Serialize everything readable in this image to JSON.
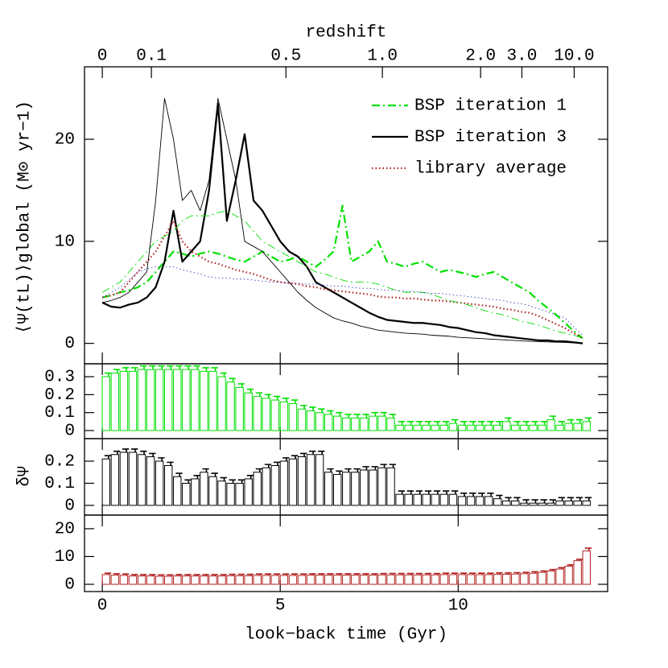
{
  "chart_data": [
    {
      "type": "line",
      "ylabel": "⟨Ψ(tL)⟩global  (M⊙ yr−1)",
      "x2label": "redshift",
      "x2ticks": [
        0,
        {
          "value": 1.38,
          "label": "0.1"
        },
        {
          "value": 5.16,
          "label": "0.5"
        },
        {
          "value": 7.87,
          "label": "1.0"
        },
        {
          "value": 10.63,
          "label": "2.0"
        },
        {
          "value": 11.79,
          "label": "3.0"
        },
        {
          "value": 13.26,
          "label": "10.0"
        }
      ],
      "xlim": [
        -0.5,
        14.2
      ],
      "ylim": [
        -2,
        27.1
      ],
      "yticks": [
        0,
        10,
        20
      ],
      "legend": "upper right",
      "x": [
        0,
        0.25,
        0.5,
        0.75,
        1,
        1.25,
        1.5,
        1.75,
        2,
        2.25,
        2.5,
        2.75,
        3,
        3.25,
        3.5,
        3.75,
        4,
        4.25,
        4.5,
        4.75,
        5,
        5.25,
        5.5,
        5.75,
        6,
        6.25,
        6.5,
        6.75,
        7,
        7.25,
        7.5,
        7.75,
        8,
        8.25,
        8.5,
        8.75,
        9,
        9.25,
        9.5,
        9.75,
        10,
        10.25,
        10.5,
        10.75,
        11,
        11.25,
        11.5,
        11.75,
        12,
        12.25,
        12.5,
        12.75,
        13,
        13.25,
        13.5
      ],
      "series": [
        {
          "name": "BSP iteration 1",
          "color": "#00e000",
          "style": "dashdot",
          "weight": "bold",
          "values": [
            4.5,
            4.7,
            5,
            5.2,
            5.5,
            6,
            7,
            8,
            9,
            8.8,
            8.5,
            8.8,
            9,
            8.8,
            8.5,
            8.2,
            8,
            8.5,
            9,
            8.5,
            8,
            8.2,
            8.5,
            8,
            7.5,
            8.2,
            9,
            13.5,
            8,
            8.5,
            9,
            10,
            8,
            7.8,
            7.5,
            7.8,
            8,
            7.5,
            7,
            7.2,
            7,
            6.8,
            6.5,
            6.8,
            7,
            6.5,
            6,
            5.5,
            5,
            4.2,
            3.5,
            2.8,
            2,
            1.2,
            0.5
          ]
        },
        {
          "name": "BSP iteration 3",
          "color": "#000000",
          "style": "solid",
          "weight": "bold",
          "values": [
            4,
            3.6,
            3.5,
            3.8,
            4,
            4.5,
            5.5,
            8,
            13,
            8,
            9,
            10,
            15,
            23.5,
            12,
            16,
            20.5,
            14,
            13,
            11.5,
            10,
            9,
            8.5,
            7.5,
            6,
            5.5,
            5,
            4.5,
            4,
            3.5,
            3,
            2.6,
            2.3,
            2.2,
            2.1,
            2,
            2,
            1.9,
            1.8,
            1.6,
            1.5,
            1.3,
            1.1,
            1,
            0.8,
            0.7,
            0.6,
            0.5,
            0.4,
            0.3,
            0.3,
            0.2,
            0.2,
            0.1,
            0
          ]
        },
        {
          "name": "library average",
          "color": "#b22222",
          "style": "dotted",
          "weight": "bold",
          "values": [
            4.5,
            4.7,
            5,
            6,
            7,
            8,
            9,
            10.5,
            12,
            10,
            9,
            8.5,
            8,
            7.8,
            7.5,
            7.2,
            7,
            6.8,
            6.5,
            6.2,
            6,
            5.9,
            5.8,
            5.6,
            5.5,
            5.3,
            5.2,
            5.1,
            5,
            4.9,
            4.8,
            4.6,
            4.5,
            4.5,
            4.4,
            4.4,
            4.3,
            4.2,
            4.2,
            4.1,
            4,
            3.9,
            3.8,
            3.7,
            3.6,
            3.4,
            3.3,
            3.1,
            3,
            2.7,
            2.3,
            1.9,
            1.5,
            1,
            0.5
          ]
        },
        {
          "color": "#00e000",
          "style": "dashdot",
          "weight": "thin",
          "values": [
            5,
            5.5,
            6,
            7,
            8,
            9,
            10,
            10.5,
            11,
            12,
            12.5,
            12.5,
            12.5,
            12.8,
            13,
            12.5,
            12,
            11,
            10,
            9.5,
            9,
            8.5,
            8,
            7.5,
            7,
            6.8,
            6.5,
            6.2,
            6,
            6,
            6,
            5.8,
            5.5,
            5.2,
            5,
            5,
            5,
            4.8,
            4.5,
            4.2,
            4,
            3.8,
            3.5,
            3.2,
            3,
            2.8,
            2.5,
            2.2,
            2,
            1.8,
            1.5,
            1.2,
            1,
            0.8,
            0.5
          ]
        },
        {
          "color": "#000000",
          "style": "solid",
          "weight": "thin",
          "values": [
            4,
            4.2,
            4.5,
            5,
            6,
            7,
            14,
            24,
            20,
            14,
            15,
            13,
            16,
            24,
            20,
            16,
            10,
            9.5,
            9,
            8,
            7,
            6,
            5,
            4.2,
            3.5,
            3,
            2.5,
            2.2,
            2,
            1.7,
            1.5,
            1.3,
            1.2,
            1.1,
            1,
            0.95,
            0.9,
            0.8,
            0.75,
            0.7,
            0.6,
            0.55,
            0.5,
            0.45,
            0.4,
            0.35,
            0.3,
            0.25,
            0.2,
            0.18,
            0.15,
            0.12,
            0.1,
            0.05,
            0
          ]
        },
        {
          "color": "#3c3cc8",
          "style": "dotted",
          "weight": "thin",
          "values": [
            4.5,
            5,
            5.5,
            6.2,
            7,
            7.3,
            7.5,
            7.5,
            7.5,
            7.2,
            7,
            6.8,
            6.5,
            6.4,
            6.4,
            6.3,
            6.3,
            6.2,
            6.1,
            6,
            6,
            5.9,
            5.9,
            5.8,
            5.8,
            5.7,
            5.6,
            5.6,
            5.5,
            5.4,
            5.4,
            5.3,
            5.2,
            5.2,
            5.1,
            5.1,
            5,
            4.9,
            4.9,
            4.8,
            4.7,
            4.6,
            4.5,
            4.4,
            4.3,
            4.2,
            4,
            3.9,
            3.7,
            3.4,
            3.1,
            2.8,
            2.5,
            1.6,
            0.8
          ]
        }
      ]
    },
    {
      "type": "errorbar",
      "color": "#00e000",
      "xlim": [
        -0.5,
        14.2
      ],
      "ylim": [
        -0.045,
        0.372
      ],
      "yticks": [
        0,
        0.1,
        0.2,
        0.3
      ],
      "x": [
        0,
        0.25,
        0.5,
        0.75,
        1,
        1.25,
        1.5,
        1.75,
        2,
        2.25,
        2.5,
        2.75,
        3,
        3.25,
        3.5,
        3.75,
        4,
        4.25,
        4.5,
        4.75,
        5,
        5.25,
        5.5,
        5.75,
        6,
        6.25,
        6.5,
        6.75,
        7,
        7.25,
        7.5,
        7.75,
        8,
        8.25,
        8.5,
        8.75,
        9,
        9.25,
        9.5,
        9.75,
        10,
        10.25,
        10.5,
        10.75,
        11,
        11.25,
        11.5,
        11.75,
        12,
        12.25,
        12.5,
        12.75,
        13,
        13.25,
        13.5
      ],
      "values": [
        0.3,
        0.32,
        0.33,
        0.33,
        0.34,
        0.34,
        0.34,
        0.34,
        0.34,
        0.34,
        0.34,
        0.33,
        0.33,
        0.3,
        0.27,
        0.24,
        0.21,
        0.19,
        0.18,
        0.17,
        0.16,
        0.15,
        0.12,
        0.11,
        0.1,
        0.09,
        0.08,
        0.07,
        0.07,
        0.07,
        0.08,
        0.08,
        0.07,
        0.03,
        0.03,
        0.03,
        0.03,
        0.03,
        0.03,
        0.04,
        0.03,
        0.03,
        0.03,
        0.03,
        0.03,
        0.05,
        0.03,
        0.03,
        0.03,
        0.03,
        0.06,
        0.03,
        0.04,
        0.04,
        0.05
      ],
      "errors": [
        0.02,
        0.02,
        0.02,
        0.02,
        0.02,
        0.02,
        0.02,
        0.02,
        0.02,
        0.02,
        0.02,
        0.02,
        0.02,
        0.02,
        0.02,
        0.02,
        0.02,
        0.02,
        0.02,
        0.02,
        0.02,
        0.02,
        0.02,
        0.02,
        0.02,
        0.02,
        0.02,
        0.02,
        0.02,
        0.02,
        0.02,
        0.02,
        0.02,
        0.02,
        0.02,
        0.02,
        0.02,
        0.02,
        0.02,
        0.02,
        0.02,
        0.02,
        0.02,
        0.02,
        0.02,
        0.02,
        0.02,
        0.02,
        0.02,
        0.02,
        0.02,
        0.02,
        0.02,
        0.02,
        0.02
      ]
    },
    {
      "type": "errorbar",
      "color": "#000000",
      "ylabel": "δΨ",
      "xlim": [
        -0.5,
        14.2
      ],
      "ylim": [
        -0.044,
        0.302
      ],
      "yticks": [
        0,
        0.1,
        0.2
      ],
      "x": [
        0,
        0.25,
        0.5,
        0.75,
        1,
        1.25,
        1.5,
        1.75,
        2,
        2.25,
        2.5,
        2.75,
        3,
        3.25,
        3.5,
        3.75,
        4,
        4.25,
        4.5,
        4.75,
        5,
        5.25,
        5.5,
        5.75,
        6,
        6.25,
        6.5,
        6.75,
        7,
        7.25,
        7.5,
        7.75,
        8,
        8.25,
        8.5,
        8.75,
        9,
        9.25,
        9.5,
        9.75,
        10,
        10.25,
        10.5,
        10.75,
        11,
        11.25,
        11.5,
        11.75,
        12,
        12.25,
        12.5,
        12.75,
        13,
        13.25,
        13.5
      ],
      "values": [
        0.21,
        0.23,
        0.24,
        0.24,
        0.23,
        0.22,
        0.2,
        0.18,
        0.13,
        0.1,
        0.12,
        0.15,
        0.13,
        0.11,
        0.1,
        0.1,
        0.12,
        0.15,
        0.17,
        0.18,
        0.2,
        0.21,
        0.22,
        0.23,
        0.23,
        0.15,
        0.14,
        0.15,
        0.15,
        0.16,
        0.16,
        0.17,
        0.17,
        0.05,
        0.05,
        0.05,
        0.05,
        0.05,
        0.05,
        0.05,
        0.04,
        0.04,
        0.04,
        0.04,
        0.03,
        0.02,
        0.02,
        0.01,
        0.01,
        0.01,
        0.01,
        0.02,
        0.02,
        0.02,
        0.02
      ],
      "errors": [
        0.015,
        0.015,
        0.015,
        0.015,
        0.015,
        0.015,
        0.015,
        0.015,
        0.015,
        0.015,
        0.015,
        0.015,
        0.015,
        0.015,
        0.015,
        0.015,
        0.015,
        0.015,
        0.015,
        0.015,
        0.015,
        0.015,
        0.015,
        0.015,
        0.015,
        0.015,
        0.015,
        0.015,
        0.015,
        0.015,
        0.015,
        0.015,
        0.015,
        0.015,
        0.015,
        0.015,
        0.015,
        0.015,
        0.015,
        0.015,
        0.015,
        0.015,
        0.015,
        0.015,
        0.015,
        0.015,
        0.015,
        0.015,
        0.015,
        0.015,
        0.015,
        0.015,
        0.015,
        0.015,
        0.015
      ]
    },
    {
      "type": "errorbar",
      "color": "#b22222",
      "xlabel": "look−back time (Gyr)",
      "xlim": [
        -0.5,
        14.2
      ],
      "xticks": [
        0,
        5,
        10
      ],
      "ylim": [
        -2.6,
        24.9
      ],
      "yticks": [
        0,
        10,
        20
      ],
      "x": [
        0,
        0.25,
        0.5,
        0.75,
        1,
        1.25,
        1.5,
        1.75,
        2,
        2.25,
        2.5,
        2.75,
        3,
        3.25,
        3.5,
        3.75,
        4,
        4.25,
        4.5,
        4.75,
        5,
        5.25,
        5.5,
        5.75,
        6,
        6.25,
        6.5,
        6.75,
        7,
        7.25,
        7.5,
        7.75,
        8,
        8.25,
        8.5,
        8.75,
        9,
        9.25,
        9.5,
        9.75,
        10,
        10.25,
        10.5,
        10.75,
        11,
        11.25,
        11.5,
        11.75,
        12,
        12.25,
        12.5,
        12.75,
        13,
        13.25,
        13.5
      ],
      "values": [
        3.5,
        3.3,
        3.2,
        3,
        3,
        3,
        2.9,
        2.9,
        3,
        3,
        3,
        3,
        3,
        3,
        3.1,
        3.1,
        3.1,
        3.2,
        3.2,
        3.2,
        3.2,
        3.2,
        3.2,
        3.3,
        3.3,
        3.3,
        3.3,
        3.3,
        3.3,
        3.3,
        3.3,
        3.4,
        3.4,
        3.4,
        3.4,
        3.4,
        3.4,
        3.4,
        3.5,
        3.5,
        3.5,
        3.5,
        3.5,
        3.5,
        3.6,
        3.6,
        3.7,
        3.8,
        4,
        4.3,
        4.8,
        5.5,
        6.5,
        8.5,
        12
      ],
      "errors": [
        0.5,
        0.5,
        0.5,
        0.5,
        0.5,
        0.5,
        0.5,
        0.5,
        0.5,
        0.5,
        0.5,
        0.5,
        0.5,
        0.5,
        0.5,
        0.5,
        0.5,
        0.5,
        0.5,
        0.5,
        0.5,
        0.5,
        0.5,
        0.5,
        0.5,
        0.5,
        0.5,
        0.5,
        0.5,
        0.5,
        0.5,
        0.5,
        0.5,
        0.5,
        0.5,
        0.5,
        0.5,
        0.5,
        0.5,
        0.5,
        0.5,
        0.5,
        0.5,
        0.5,
        0.5,
        0.5,
        0.5,
        0.5,
        0.5,
        0.5,
        0.5,
        0.5,
        0.5,
        0.5,
        1
      ]
    }
  ]
}
